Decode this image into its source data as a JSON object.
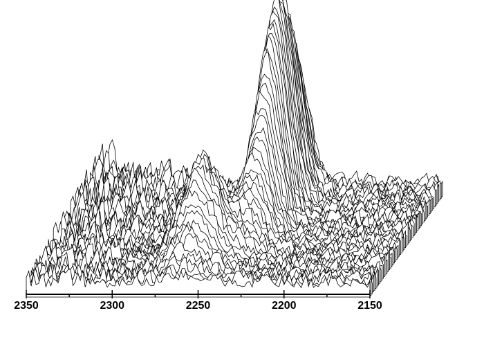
{
  "chart_data": {
    "type": "waterfall",
    "x_axis": {
      "range": [
        2350,
        2150
      ],
      "reversed": true,
      "major_ticks": [
        2350,
        2300,
        2250,
        2200,
        2150
      ],
      "tick_labels": [
        "2350",
        "2300",
        "2250",
        "2200",
        "2150"
      ],
      "minor_tick_step": 25,
      "label": ""
    },
    "trace_count": 60,
    "grid": false,
    "line_color": "#000000",
    "background": "#ffffff",
    "peaks": [
      {
        "center": 2235,
        "amplitude": 100,
        "width": 8,
        "depth_center": 0.75,
        "depth_width": 0.22
      },
      {
        "center": 2260,
        "amplitude": 46,
        "width": 11,
        "depth_center": 0.28,
        "depth_width": 0.12
      }
    ],
    "noise_level": 6
  }
}
